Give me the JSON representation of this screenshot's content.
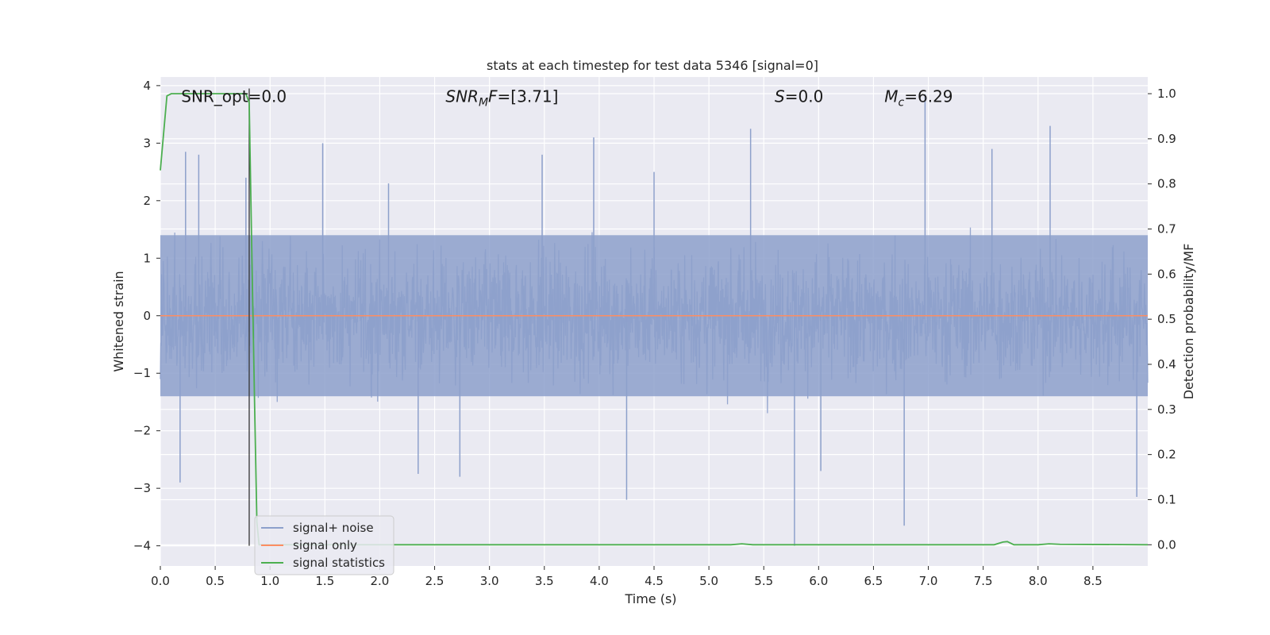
{
  "chart_data": {
    "type": "line",
    "title": "stats at each timestep for test data 5346 [signal=0]",
    "xlabel": "Time (s)",
    "ylabel_left": "Whitened strain",
    "ylabel_right": "Detection probability/MF",
    "xlim": [
      0.0,
      9.0
    ],
    "ylim_left": [
      -4.35,
      4.15
    ],
    "ylim_right": [
      -0.047,
      1.037
    ],
    "xticks": [
      "0.0",
      "0.5",
      "1.0",
      "1.5",
      "2.0",
      "2.5",
      "3.0",
      "3.5",
      "4.0",
      "4.5",
      "5.0",
      "5.5",
      "6.0",
      "6.5",
      "7.0",
      "7.5",
      "8.0",
      "8.5"
    ],
    "xtick_values": [
      0.0,
      0.5,
      1.0,
      1.5,
      2.0,
      2.5,
      3.0,
      3.5,
      4.0,
      4.5,
      5.0,
      5.5,
      6.0,
      6.5,
      7.0,
      7.5,
      8.0,
      8.5
    ],
    "yticks_left": [
      "−4",
      "−3",
      "−2",
      "−1",
      "0",
      "1",
      "2",
      "3",
      "4"
    ],
    "ytick_values_left": [
      -4,
      -3,
      -2,
      -1,
      0,
      1,
      2,
      3,
      4
    ],
    "yticks_right": [
      "0.0",
      "0.1",
      "0.2",
      "0.3",
      "0.4",
      "0.5",
      "0.6",
      "0.7",
      "0.8",
      "0.9",
      "1.0"
    ],
    "ytick_values_right": [
      0.0,
      0.1,
      0.2,
      0.3,
      0.4,
      0.5,
      0.6,
      0.7,
      0.8,
      0.9,
      1.0
    ],
    "grid": true,
    "annotations": [
      {
        "text": "SNR_opt=0.0",
        "x": 0.19,
        "y": 3.85
      },
      {
        "text": "SNR_MF=[3.71]",
        "x": 2.6,
        "y": 3.85
      },
      {
        "text": "S=0.0",
        "x": 5.6,
        "y": 3.85
      },
      {
        "text": "M_c=6.29",
        "x": 6.6,
        "y": 3.85
      }
    ],
    "vertical_line_x": 0.81,
    "series": [
      {
        "name": "signal+ noise",
        "axis": "left",
        "color": "#8da0cb",
        "note_noise_band": {
          "typical_low": -1.4,
          "typical_high": 1.4
        },
        "spikes": [
          {
            "x": 0.18,
            "y": -2.9
          },
          {
            "x": 0.23,
            "y": 2.85
          },
          {
            "x": 0.35,
            "y": 2.8
          },
          {
            "x": 0.78,
            "y": 2.4
          },
          {
            "x": 1.48,
            "y": 3.0
          },
          {
            "x": 2.08,
            "y": 2.3
          },
          {
            "x": 2.35,
            "y": -2.75
          },
          {
            "x": 2.73,
            "y": -2.8
          },
          {
            "x": 3.48,
            "y": 2.8
          },
          {
            "x": 3.95,
            "y": 3.1
          },
          {
            "x": 4.25,
            "y": -3.2
          },
          {
            "x": 4.5,
            "y": 2.5
          },
          {
            "x": 5.38,
            "y": 3.25
          },
          {
            "x": 5.78,
            "y": -4.0
          },
          {
            "x": 6.02,
            "y": -2.7
          },
          {
            "x": 6.78,
            "y": -3.65
          },
          {
            "x": 6.97,
            "y": 3.85
          },
          {
            "x": 7.58,
            "y": 2.9
          },
          {
            "x": 8.11,
            "y": 3.3
          },
          {
            "x": 8.9,
            "y": -3.15
          }
        ]
      },
      {
        "name": "signal only",
        "axis": "left",
        "color": "#fc8d62",
        "x": [
          0.0,
          9.0
        ],
        "y": [
          0.0,
          0.0
        ]
      },
      {
        "name": "signal statistics",
        "axis": "right",
        "color": "#4caf50",
        "x": [
          0.0,
          0.06,
          0.1,
          0.2,
          0.3,
          0.5,
          0.7,
          0.78,
          0.81,
          0.83,
          0.86,
          0.88,
          0.9,
          1.0,
          2.0,
          3.0,
          4.0,
          5.0,
          5.2,
          5.3,
          5.4,
          6.0,
          7.0,
          7.6,
          7.68,
          7.72,
          7.78,
          8.0,
          8.1,
          8.2,
          9.0
        ],
        "y": [
          0.83,
          0.995,
          1.0,
          1.0,
          1.0,
          1.0,
          1.0,
          1.0,
          0.98,
          0.7,
          0.3,
          0.05,
          0.0,
          0.0,
          0.0,
          0.0,
          0.0,
          0.0,
          0.0,
          0.002,
          0.0,
          0.0,
          0.0,
          0.0,
          0.006,
          0.007,
          0.0,
          0.0,
          0.002,
          0.001,
          0.0
        ]
      }
    ],
    "legend": {
      "placement": "lower-left",
      "entries": [
        {
          "label": "signal+ noise",
          "color": "#8da0cb"
        },
        {
          "label": "signal only",
          "color": "#fc8d62"
        },
        {
          "label": "signal statistics",
          "color": "#4caf50"
        }
      ]
    }
  }
}
